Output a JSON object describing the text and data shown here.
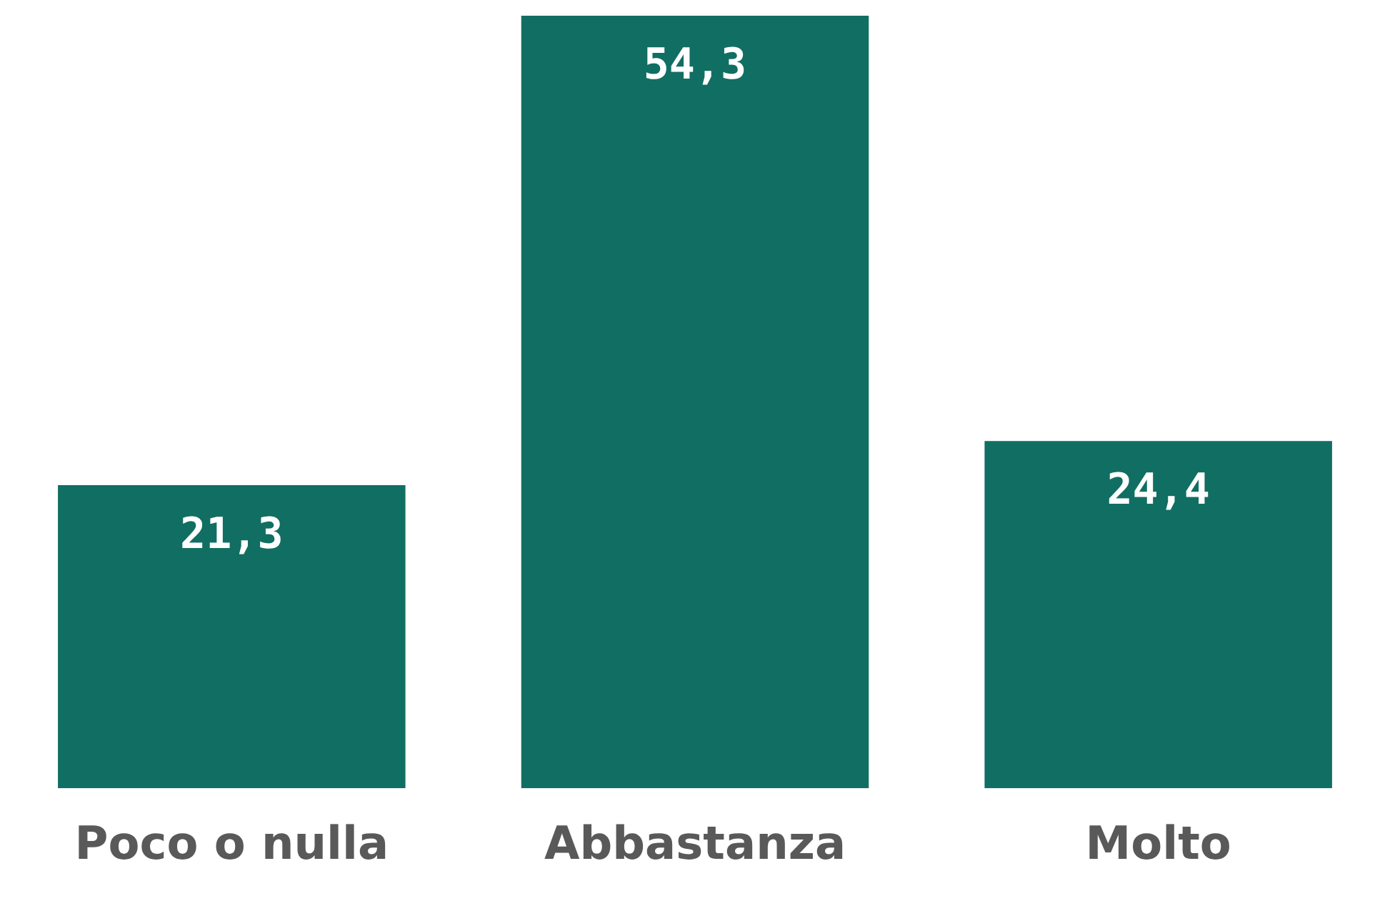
{
  "chart_data": {
    "type": "bar",
    "categories": [
      "Poco o nulla",
      "Abbastanza",
      "Molto"
    ],
    "values": [
      21.3,
      54.3,
      24.4
    ],
    "value_labels": [
      "21,3",
      "54,3",
      "24,4"
    ],
    "color": "#116e62",
    "grid": false,
    "legend": false
  }
}
